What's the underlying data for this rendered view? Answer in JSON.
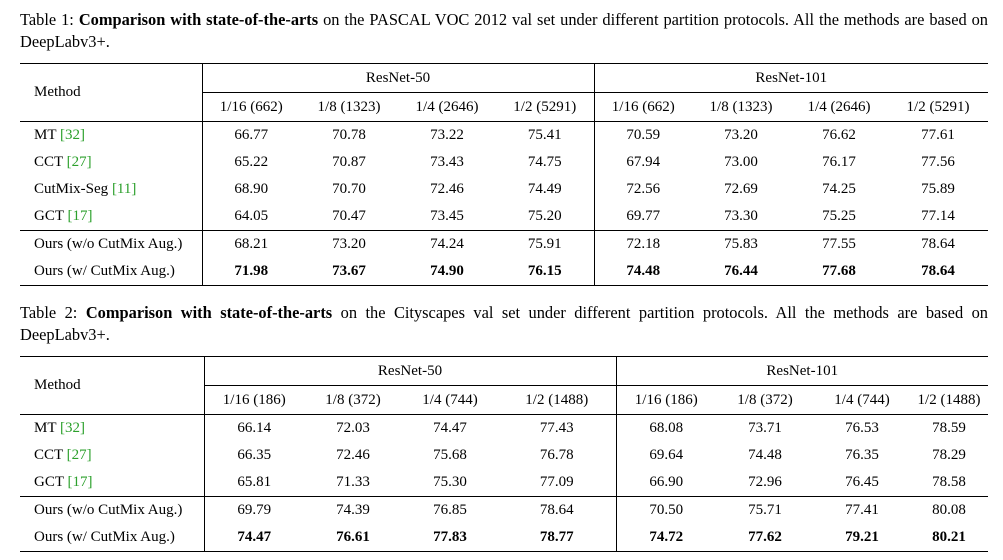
{
  "table1": {
    "label": "Table 1:",
    "title": "Comparison with state-of-the-arts",
    "rest": "on the PASCAL VOC 2012 val set under different partition protocols. All the methods are based on DeepLabv3+.",
    "method_header": "Method",
    "group1": "ResNet-50",
    "group2": "ResNet-101",
    "cols": [
      "1/16 (662)",
      "1/8 (1323)",
      "1/4 (2646)",
      "1/2 (5291)",
      "1/16 (662)",
      "1/8 (1323)",
      "1/4 (2646)",
      "1/2 (5291)"
    ],
    "rows": [
      {
        "method": "MT",
        "ref": "[32]",
        "values": [
          "66.77",
          "70.78",
          "73.22",
          "75.41",
          "70.59",
          "73.20",
          "76.62",
          "77.61"
        ]
      },
      {
        "method": "CCT",
        "ref": "[27]",
        "values": [
          "65.22",
          "70.87",
          "73.43",
          "74.75",
          "67.94",
          "73.00",
          "76.17",
          "77.56"
        ]
      },
      {
        "method": "CutMix-Seg",
        "ref": "[11]",
        "values": [
          "68.90",
          "70.70",
          "72.46",
          "74.49",
          "72.56",
          "72.69",
          "74.25",
          "75.89"
        ]
      },
      {
        "method": "GCT",
        "ref": "[17]",
        "values": [
          "64.05",
          "70.47",
          "73.45",
          "75.20",
          "69.77",
          "73.30",
          "75.25",
          "77.14"
        ]
      },
      {
        "method": "Ours (w/o CutMix Aug.)",
        "ref": "",
        "values": [
          "68.21",
          "73.20",
          "74.24",
          "75.91",
          "72.18",
          "75.83",
          "77.55",
          "78.64"
        ]
      },
      {
        "method": "Ours (w/ CutMix Aug.)",
        "ref": "",
        "values": [
          "71.98",
          "73.67",
          "74.90",
          "76.15",
          "74.48",
          "76.44",
          "77.68",
          "78.64"
        ]
      }
    ]
  },
  "table2": {
    "label": "Table 2:",
    "title": "Comparison with state-of-the-arts",
    "rest": "on the Cityscapes val set under different partition protocols. All the methods are based on DeepLabv3+.",
    "method_header": "Method",
    "group1": "ResNet-50",
    "group2": "ResNet-101",
    "cols": [
      "1/16 (186)",
      "1/8 (372)",
      "1/4 (744)",
      "1/2 (1488)",
      "1/16 (186)",
      "1/8 (372)",
      "1/4 (744)",
      "1/2 (1488)"
    ],
    "rows": [
      {
        "method": "MT",
        "ref": "[32]",
        "values": [
          "66.14",
          "72.03",
          "74.47",
          "77.43",
          "68.08",
          "73.71",
          "76.53",
          "78.59"
        ]
      },
      {
        "method": "CCT",
        "ref": "[27]",
        "values": [
          "66.35",
          "72.46",
          "75.68",
          "76.78",
          "69.64",
          "74.48",
          "76.35",
          "78.29"
        ]
      },
      {
        "method": "GCT",
        "ref": "[17]",
        "values": [
          "65.81",
          "71.33",
          "75.30",
          "77.09",
          "66.90",
          "72.96",
          "76.45",
          "78.58"
        ]
      },
      {
        "method": "Ours (w/o CutMix Aug.)",
        "ref": "",
        "values": [
          "69.79",
          "74.39",
          "76.85",
          "78.64",
          "70.50",
          "75.71",
          "77.41",
          "80.08"
        ]
      },
      {
        "method": "Ours (w/ CutMix Aug.)",
        "ref": "",
        "values": [
          "74.47",
          "76.61",
          "77.83",
          "78.77",
          "74.72",
          "77.62",
          "79.21",
          "80.21"
        ]
      }
    ]
  }
}
